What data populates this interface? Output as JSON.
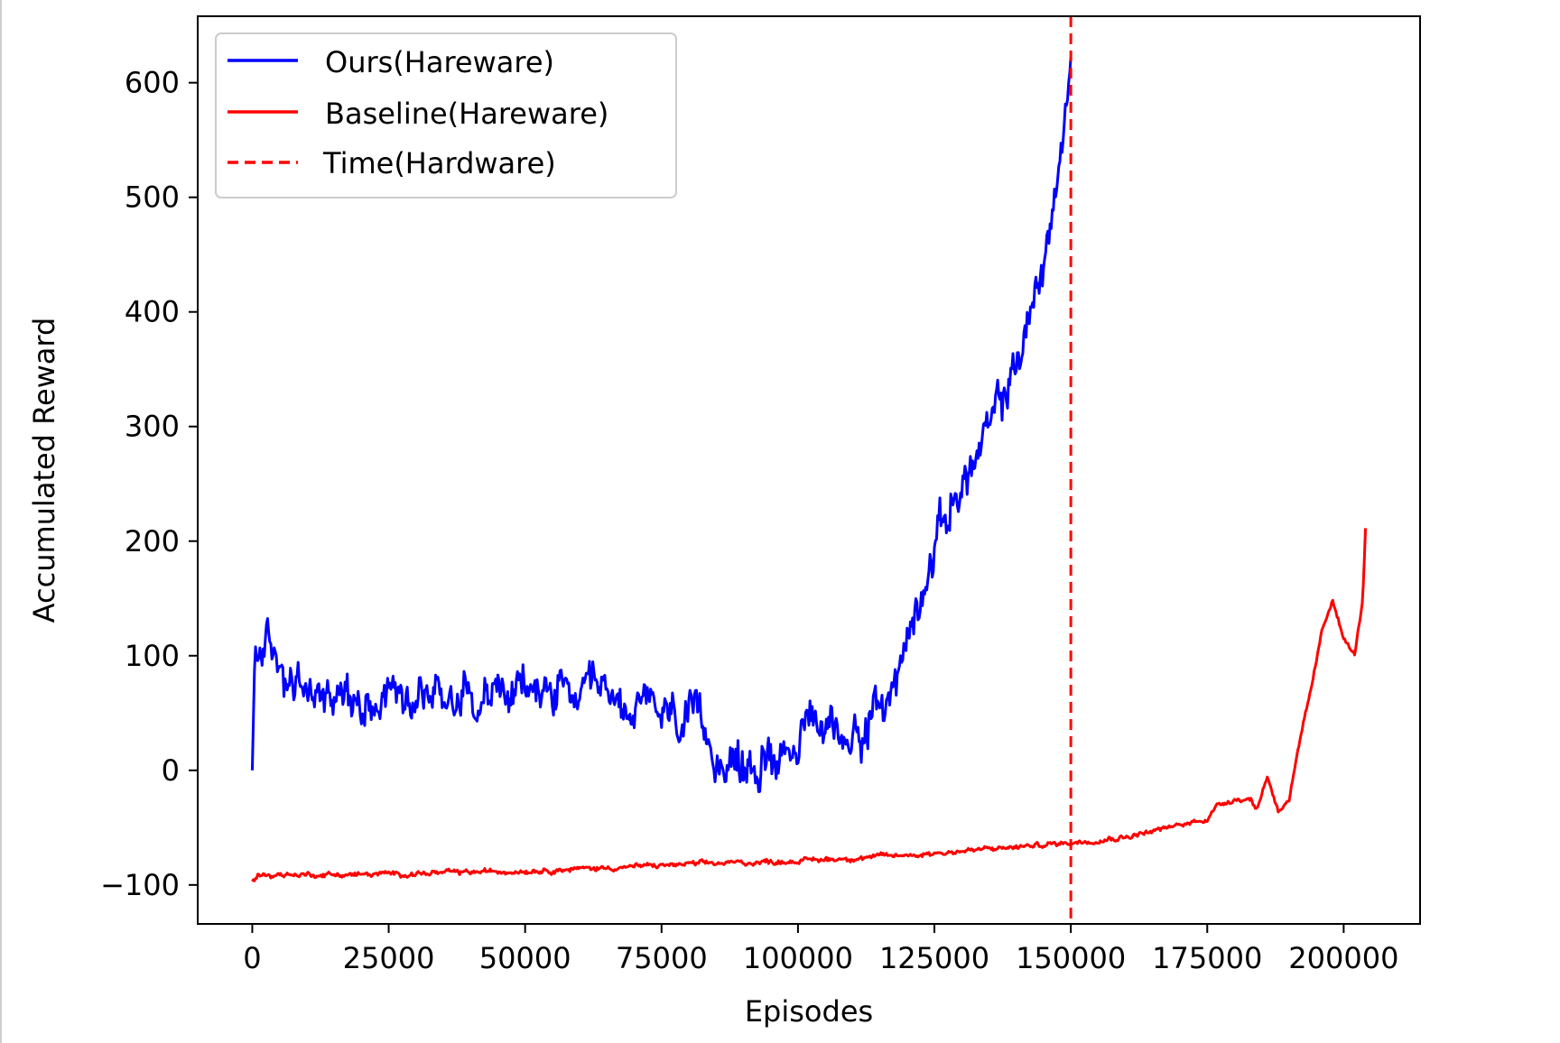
{
  "chart_data": {
    "type": "line",
    "title": "",
    "xlabel": "Episodes",
    "ylabel": "Accumulated Reward",
    "xlim": [
      -10000,
      214000
    ],
    "ylim": [
      -134,
      658
    ],
    "xticks": [
      0,
      25000,
      50000,
      75000,
      100000,
      125000,
      150000,
      175000,
      200000
    ],
    "yticks": [
      -100,
      0,
      100,
      200,
      300,
      400,
      500,
      600
    ],
    "xtick_labels": [
      "0",
      "25000",
      "50000",
      "75000",
      "100000",
      "125000",
      "150000",
      "175000",
      "200000"
    ],
    "ytick_labels": [
      "−100",
      "0",
      "100",
      "200",
      "300",
      "400",
      "500",
      "600"
    ],
    "grid": false,
    "legend_position": "top-left",
    "series": [
      {
        "name": "Ours(Hareware)",
        "color": "#0000ff",
        "style": "solid",
        "noise": 22,
        "points": [
          [
            0,
            0
          ],
          [
            500,
            95
          ],
          [
            2000,
            112
          ],
          [
            5000,
            90
          ],
          [
            10000,
            65
          ],
          [
            15000,
            68
          ],
          [
            20000,
            62
          ],
          [
            25000,
            72
          ],
          [
            30000,
            70
          ],
          [
            35000,
            66
          ],
          [
            40000,
            70
          ],
          [
            45000,
            67
          ],
          [
            50000,
            68
          ],
          [
            55000,
            70
          ],
          [
            60000,
            60
          ],
          [
            65000,
            62
          ],
          [
            70000,
            55
          ],
          [
            75000,
            48
          ],
          [
            78000,
            45
          ],
          [
            82000,
            35
          ],
          [
            85000,
            20
          ],
          [
            88000,
            5
          ],
          [
            90000,
            0
          ],
          [
            92000,
            0
          ],
          [
            95000,
            15
          ],
          [
            100000,
            30
          ],
          [
            105000,
            40
          ],
          [
            108000,
            30
          ],
          [
            112000,
            40
          ],
          [
            115000,
            50
          ],
          [
            118000,
            80
          ],
          [
            121000,
            130
          ],
          [
            123000,
            170
          ],
          [
            126000,
            210
          ],
          [
            129000,
            240
          ],
          [
            132000,
            265
          ],
          [
            135000,
            295
          ],
          [
            138000,
            330
          ],
          [
            141000,
            370
          ],
          [
            144000,
            420
          ],
          [
            146000,
            470
          ],
          [
            148000,
            530
          ],
          [
            150000,
            605
          ]
        ]
      },
      {
        "name": "Baseline(Hareware)",
        "color": "#ff0000",
        "style": "solid",
        "noise": 2.5,
        "points": [
          [
            0,
            -97
          ],
          [
            1000,
            -91
          ],
          [
            20000,
            -91
          ],
          [
            40000,
            -89
          ],
          [
            60000,
            -86
          ],
          [
            80000,
            -82
          ],
          [
            100000,
            -79
          ],
          [
            120000,
            -74
          ],
          [
            140000,
            -67
          ],
          [
            150000,
            -63
          ],
          [
            160000,
            -58
          ],
          [
            170000,
            -48
          ],
          [
            175000,
            -42
          ],
          [
            177000,
            -30
          ],
          [
            180000,
            -25
          ],
          [
            183000,
            -25
          ],
          [
            184000,
            -35
          ],
          [
            186000,
            -5
          ],
          [
            188000,
            -35
          ],
          [
            190000,
            -25
          ],
          [
            192000,
            25
          ],
          [
            194000,
            70
          ],
          [
            196000,
            120
          ],
          [
            198000,
            150
          ],
          [
            200000,
            115
          ],
          [
            202000,
            100
          ],
          [
            203500,
            150
          ],
          [
            204000,
            210
          ]
        ]
      }
    ],
    "vline": {
      "name": "Time(Hardware)",
      "x": 150000,
      "color": "#ff0000",
      "style": "dashed"
    }
  }
}
